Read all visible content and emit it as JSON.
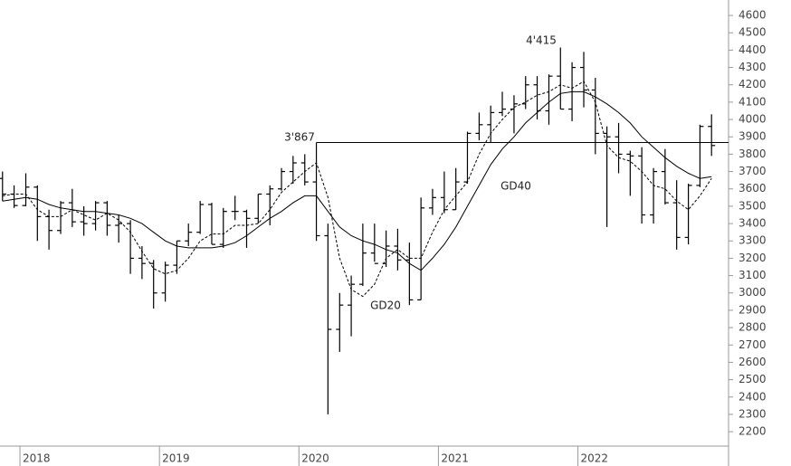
{
  "chart_data": {
    "type": "ohlc",
    "x": [
      2017.875,
      2017.958,
      2018.042,
      2018.125,
      2018.208,
      2018.292,
      2018.375,
      2018.458,
      2018.542,
      2018.625,
      2018.708,
      2018.792,
      2018.875,
      2018.958,
      2019.042,
      2019.125,
      2019.208,
      2019.292,
      2019.375,
      2019.458,
      2019.542,
      2019.625,
      2019.708,
      2019.792,
      2019.875,
      2019.958,
      2020.042,
      2020.125,
      2020.208,
      2020.292,
      2020.375,
      2020.458,
      2020.542,
      2020.625,
      2020.708,
      2020.792,
      2020.875,
      2020.958,
      2021.042,
      2021.125,
      2021.208,
      2021.292,
      2021.375,
      2021.458,
      2021.542,
      2021.625,
      2021.708,
      2021.792,
      2021.875,
      2021.958,
      2022.042,
      2022.125,
      2022.208,
      2022.292,
      2022.375,
      2022.458,
      2022.542,
      2022.625,
      2022.708,
      2022.792,
      2022.875,
      2022.958
    ],
    "open": [
      3660,
      3570,
      3504,
      3610,
      3440,
      3360,
      3520,
      3410,
      3400,
      3520,
      3390,
      3400,
      3200,
      3170,
      3000,
      3160,
      3300,
      3350,
      3510,
      3280,
      3470,
      3470,
      3430,
      3570,
      3600,
      3700,
      3750,
      3640,
      3330,
      2790,
      2930,
      3050,
      3230,
      3170,
      3270,
      3190,
      2960,
      3490,
      3550,
      3480,
      3640,
      3920,
      3970,
      4040,
      4060,
      4090,
      4200,
      4050,
      4250,
      4060,
      4300,
      4170,
      3920,
      3900,
      3800,
      3790,
      3450,
      3700,
      3520,
      3320,
      3620,
      3960
    ],
    "high": [
      3700,
      3620,
      3690,
      3620,
      3480,
      3530,
      3600,
      3500,
      3530,
      3530,
      3450,
      3420,
      3270,
      3190,
      3180,
      3300,
      3400,
      3530,
      3520,
      3490,
      3560,
      3480,
      3570,
      3620,
      3720,
      3790,
      3800,
      3867,
      3400,
      3000,
      3100,
      3400,
      3400,
      3360,
      3370,
      3290,
      3550,
      3600,
      3700,
      3720,
      3930,
      4040,
      4080,
      4160,
      4140,
      4250,
      4250,
      4260,
      4415,
      4330,
      4390,
      4240,
      3960,
      3980,
      3820,
      3840,
      3720,
      3830,
      3650,
      3630,
      3970,
      4030
    ],
    "low": [
      3530,
      3490,
      3500,
      3300,
      3250,
      3340,
      3380,
      3330,
      3360,
      3330,
      3290,
      3110,
      3080,
      2910,
      2950,
      3110,
      3270,
      3340,
      3280,
      3260,
      3420,
      3260,
      3400,
      3390,
      3590,
      3630,
      3620,
      3300,
      2300,
      2660,
      2750,
      3040,
      3180,
      3150,
      3130,
      2930,
      2960,
      3450,
      3460,
      3480,
      3630,
      3880,
      3870,
      4020,
      3920,
      4060,
      4000,
      3970,
      4060,
      3990,
      4070,
      3800,
      3380,
      3690,
      3560,
      3400,
      3400,
      3510,
      3250,
      3280,
      3610,
      3790
    ],
    "close": [
      3570,
      3504,
      3610,
      3440,
      3360,
      3520,
      3410,
      3400,
      3520,
      3390,
      3400,
      3200,
      3170,
      3000,
      3160,
      3300,
      3350,
      3510,
      3280,
      3470,
      3470,
      3430,
      3570,
      3600,
      3700,
      3750,
      3640,
      3330,
      2790,
      2930,
      3050,
      3230,
      3170,
      3270,
      3190,
      2960,
      3490,
      3550,
      3480,
      3640,
      3920,
      3970,
      4040,
      4060,
      4090,
      4200,
      4050,
      4250,
      4060,
      4300,
      4170,
      3920,
      3900,
      3800,
      3790,
      3450,
      3700,
      3520,
      3320,
      3620,
      3960,
      3850
    ],
    "series": [
      {
        "name": "GD20",
        "style": "dashed",
        "values": [
          3560,
          3570,
          3570,
          3480,
          3440,
          3440,
          3480,
          3450,
          3420,
          3460,
          3420,
          3350,
          3240,
          3140,
          3110,
          3130,
          3200,
          3300,
          3340,
          3340,
          3390,
          3390,
          3400,
          3480,
          3580,
          3640,
          3700,
          3750,
          3550,
          3200,
          3020,
          2980,
          3050,
          3200,
          3250,
          3200,
          3200,
          3350,
          3480,
          3560,
          3640,
          3800,
          3920,
          4000,
          4070,
          4100,
          4140,
          4160,
          4200,
          4180,
          4220,
          4100,
          3850,
          3780,
          3760,
          3700,
          3620,
          3600,
          3530,
          3480,
          3560,
          3660
        ]
      },
      {
        "name": "GD40",
        "style": "solid",
        "values": [
          3530,
          3540,
          3550,
          3540,
          3510,
          3490,
          3480,
          3470,
          3470,
          3460,
          3450,
          3430,
          3400,
          3350,
          3300,
          3270,
          3260,
          3260,
          3260,
          3270,
          3290,
          3330,
          3380,
          3430,
          3470,
          3520,
          3560,
          3560,
          3470,
          3380,
          3330,
          3300,
          3280,
          3250,
          3230,
          3170,
          3130,
          3200,
          3280,
          3380,
          3500,
          3620,
          3740,
          3830,
          3900,
          3980,
          4040,
          4100,
          4150,
          4160,
          4160,
          4130,
          4090,
          4040,
          3980,
          3900,
          3840,
          3780,
          3730,
          3690,
          3660,
          3670
        ]
      }
    ],
    "reference_line": 3867,
    "annotations": [
      "3'867",
      "4'415"
    ],
    "xlim": [
      2017.857,
      2023.08
    ],
    "xticks": [
      2018,
      2019,
      2020,
      2021,
      2022
    ],
    "ylim": [
      2117,
      4689
    ],
    "yticks": [
      2200,
      2300,
      2400,
      2500,
      2600,
      2700,
      2800,
      2900,
      3000,
      3100,
      3200,
      3300,
      3400,
      3500,
      3600,
      3700,
      3800,
      3900,
      4000,
      4100,
      4200,
      4300,
      4400,
      4500,
      4600
    ],
    "color": "#000000"
  }
}
